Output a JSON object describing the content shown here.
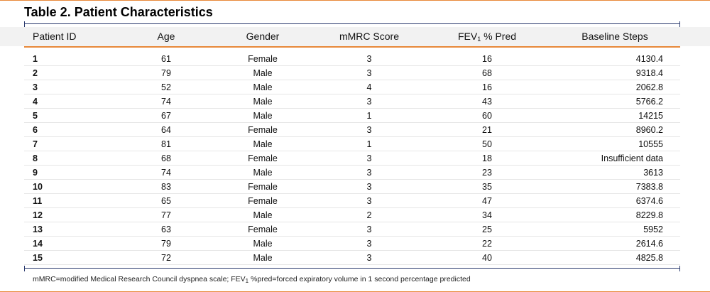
{
  "title": "Table 2. Patient Characteristics",
  "colors": {
    "accent": "#e8893a",
    "frame": "#2a3a6e",
    "header_bg": "#f2f2f2"
  },
  "headers": {
    "patient_id": "Patient ID",
    "age": "Age",
    "gender": "Gender",
    "mmrc": "mMRC Score",
    "fev_prefix": "FEV",
    "fev_sub": "1",
    "fev_suffix": " % Pred",
    "steps": "Baseline Steps"
  },
  "rows": [
    {
      "id": "1",
      "age": "61",
      "gender": "Female",
      "mmrc": "3",
      "fev": "16",
      "steps": "4130.4"
    },
    {
      "id": "2",
      "age": "79",
      "gender": "Male",
      "mmrc": "3",
      "fev": "68",
      "steps": "9318.4"
    },
    {
      "id": "3",
      "age": "52",
      "gender": "Male",
      "mmrc": "4",
      "fev": "16",
      "steps": "2062.8"
    },
    {
      "id": "4",
      "age": "74",
      "gender": "Male",
      "mmrc": "3",
      "fev": "43",
      "steps": "5766.2"
    },
    {
      "id": "5",
      "age": "67",
      "gender": "Male",
      "mmrc": "1",
      "fev": "60",
      "steps": "14215"
    },
    {
      "id": "6",
      "age": "64",
      "gender": "Female",
      "mmrc": "3",
      "fev": "21",
      "steps": "8960.2"
    },
    {
      "id": "7",
      "age": "81",
      "gender": "Male",
      "mmrc": "1",
      "fev": "50",
      "steps": "10555"
    },
    {
      "id": "8",
      "age": "68",
      "gender": "Female",
      "mmrc": "3",
      "fev": "18",
      "steps": "Insufficient data"
    },
    {
      "id": "9",
      "age": "74",
      "gender": "Male",
      "mmrc": "3",
      "fev": "23",
      "steps": "3613"
    },
    {
      "id": "10",
      "age": "83",
      "gender": "Female",
      "mmrc": "3",
      "fev": "35",
      "steps": "7383.8"
    },
    {
      "id": "11",
      "age": "65",
      "gender": "Female",
      "mmrc": "3",
      "fev": "47",
      "steps": "6374.6"
    },
    {
      "id": "12",
      "age": "77",
      "gender": "Male",
      "mmrc": "2",
      "fev": "34",
      "steps": "8229.8"
    },
    {
      "id": "13",
      "age": "63",
      "gender": "Female",
      "mmrc": "3",
      "fev": "25",
      "steps": "5952"
    },
    {
      "id": "14",
      "age": "79",
      "gender": "Male",
      "mmrc": "3",
      "fev": "22",
      "steps": "2614.6"
    },
    {
      "id": "15",
      "age": "72",
      "gender": "Male",
      "mmrc": "3",
      "fev": "40",
      "steps": "4825.8"
    }
  ],
  "footnote": {
    "part1": "mMRC=modified Medical Research Council dyspnea scale; FEV",
    "sub": "1",
    "part2": " %pred=forced expiratory volume in 1 second percentage predicted"
  }
}
